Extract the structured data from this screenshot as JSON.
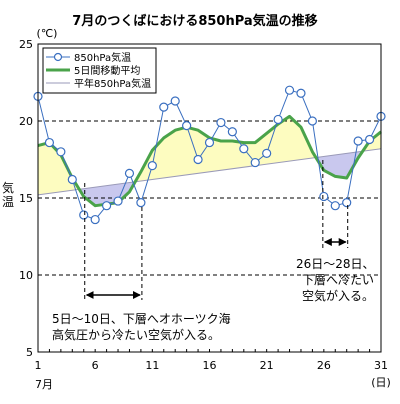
{
  "chart_data": {
    "type": "line",
    "title": "7月のつくばにおける850hPa気温の推移",
    "ylabel": "気温",
    "yunit": "(℃)",
    "xunit": "(日)",
    "xmonth": "7月",
    "ylim": [
      5,
      25
    ],
    "yticks": [
      5,
      10,
      15,
      20,
      25
    ],
    "xlim": [
      1,
      31
    ],
    "xticks": [
      1,
      6,
      11,
      16,
      21,
      26,
      31
    ],
    "grid": "dashed-horizontal",
    "legend_position": "top-left",
    "series": [
      {
        "name": "850hPa気温",
        "color": "#3a6fc0",
        "marker": "open-circle",
        "x": [
          1,
          2,
          3,
          4,
          5,
          6,
          7,
          8,
          9,
          10,
          11,
          12,
          13,
          14,
          15,
          16,
          17,
          18,
          19,
          20,
          21,
          22,
          23,
          24,
          25,
          26,
          27,
          28,
          29,
          30,
          31
        ],
        "values": [
          21.6,
          18.6,
          18.0,
          16.2,
          13.9,
          13.6,
          14.5,
          14.8,
          16.6,
          14.7,
          17.1,
          20.9,
          21.3,
          19.7,
          17.5,
          18.6,
          19.9,
          19.3,
          18.2,
          17.3,
          17.9,
          20.1,
          22.0,
          21.8,
          20.0,
          15.1,
          14.5,
          14.7,
          18.7,
          18.8,
          20.3
        ]
      },
      {
        "name": "5日間移動平均",
        "color": "#4aa34a",
        "x": [
          1,
          2,
          3,
          4,
          5,
          6,
          7,
          8,
          9,
          10,
          11,
          12,
          13,
          14,
          15,
          16,
          17,
          18,
          19,
          20,
          21,
          22,
          23,
          24,
          25,
          26,
          27,
          28,
          29,
          30,
          31
        ],
        "values": [
          18.4,
          18.6,
          17.8,
          16.3,
          15.1,
          14.5,
          14.6,
          14.7,
          15.4,
          16.7,
          18.1,
          18.9,
          19.4,
          19.6,
          19.4,
          18.9,
          18.7,
          18.7,
          18.6,
          18.6,
          19.2,
          19.8,
          20.3,
          19.6,
          18.0,
          16.8,
          16.4,
          16.3,
          17.6,
          18.7,
          19.3
        ]
      },
      {
        "name": "平年850hPa気温",
        "color": "#9a9ab8",
        "x": [
          1,
          31
        ],
        "values": [
          15.2,
          18.2
        ]
      }
    ],
    "annotations": [
      {
        "line1": "5日〜10日、下層へオホーツク海",
        "line2": "高気圧から冷たい空気が入る。",
        "x_from": 5,
        "x_to": 10
      },
      {
        "line1": "26日〜28日、",
        "line2": "下層へ冷たい",
        "line3": "空気が入る。",
        "x_from": 26,
        "x_to": 28
      }
    ],
    "fills": {
      "above_normal_color": "#fdfcc0",
      "below_normal_color": "#c9c8ee"
    }
  }
}
